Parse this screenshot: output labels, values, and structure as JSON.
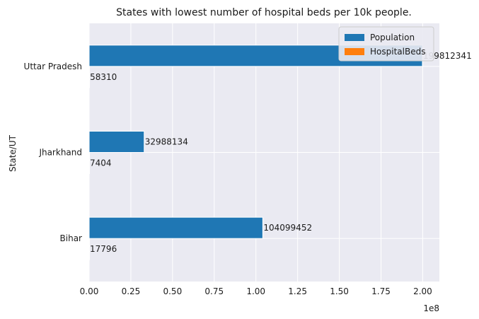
{
  "chart_data": {
    "type": "bar",
    "orientation": "horizontal",
    "title": "States with lowest number of hospital beds per 10k people.",
    "xlabel": "",
    "ylabel": "State/UT",
    "x_multiplier_label": "1e8",
    "xlim": [
      0,
      210000000
    ],
    "xticks": [
      0,
      25000000,
      50000000,
      75000000,
      100000000,
      125000000,
      150000000,
      175000000,
      200000000
    ],
    "xtick_labels": [
      "0.00",
      "0.25",
      "0.50",
      "0.75",
      "1.00",
      "1.25",
      "1.50",
      "1.75",
      "2.00"
    ],
    "categories": [
      "Bihar",
      "Jharkhand",
      "Uttar Pradesh"
    ],
    "series": [
      {
        "name": "Population",
        "color": "#1f77b4",
        "values": [
          104099452,
          32988134,
          199812341
        ],
        "labels": [
          "104099452",
          "32988134",
          "199812341"
        ]
      },
      {
        "name": "HospitalBeds",
        "color": "#ff7f0e",
        "values": [
          17796,
          7404,
          58310
        ],
        "labels": [
          "17796",
          "7404",
          "58310"
        ]
      }
    ],
    "legend_position": "top-right",
    "grid": true,
    "style": {
      "axes_background": "#eaeaf2",
      "grid_color": "#ffffff"
    }
  }
}
